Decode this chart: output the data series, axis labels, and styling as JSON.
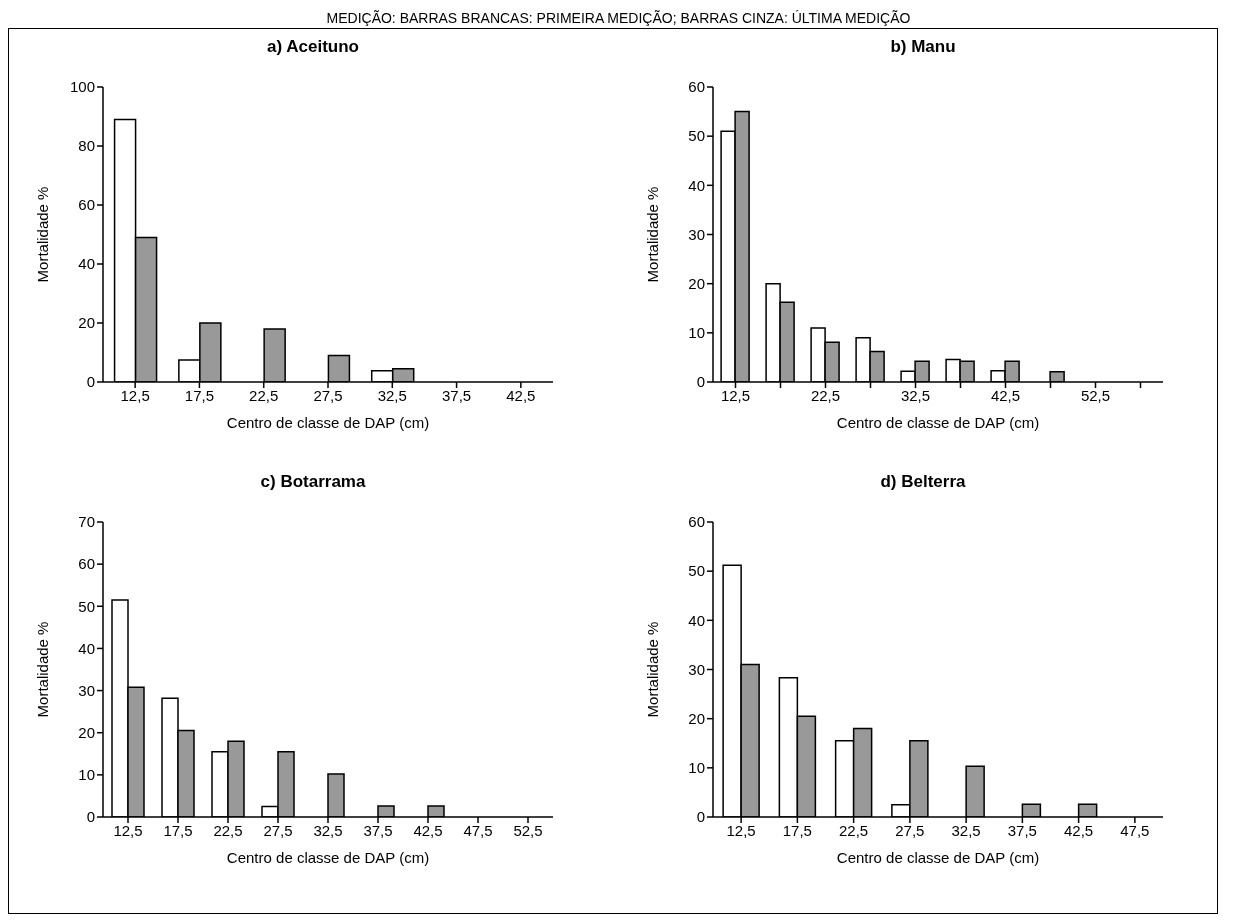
{
  "chart_data": [
    {
      "type": "bar",
      "title": "a) Aceituno",
      "annotations": [
        "MEDIÇÃO: BARRAS BRANCAS: PRIMEIRA MEDIÇÃO; BARRAS CINZA: ÚLTIMA MEDIÇÃO"
      ],
      "xlabel": "Centro de classe de DAP (cm)",
      "ylabel": "Mortalidade %",
      "categories": [
        "12,5",
        "17,5",
        "22,5",
        "27,5",
        "32,5",
        "37,5",
        "42,5"
      ],
      "series": [
        {
          "color": "#ffffff",
          "values": [
            89,
            7.5,
            0,
            0,
            3.8,
            0,
            0
          ]
        },
        {
          "color": "#999999",
          "values": [
            49,
            20,
            18,
            9,
            4.5,
            0,
            0
          ]
        }
      ],
      "ylim": [
        0,
        100
      ],
      "yticks": [
        0,
        20,
        40,
        60,
        80,
        100
      ]
    },
    {
      "type": "bar",
      "title": "b) Manu",
      "xlabel": "Centro de classe de DAP (cm)",
      "ylabel": "Mortalidade %",
      "categories": [
        "12,5",
        null,
        "22,5",
        null,
        "32,5",
        null,
        "42,5",
        null,
        "52,5",
        null
      ],
      "series": [
        {
          "color": "#ffffff",
          "values": [
            51,
            20,
            11,
            9,
            2.2,
            4.6,
            2.3,
            0,
            0,
            0
          ]
        },
        {
          "color": "#999999",
          "values": [
            55,
            16.2,
            8.1,
            6.2,
            4.2,
            4.2,
            4.2,
            2.1,
            0,
            0
          ]
        }
      ],
      "ylim": [
        0,
        60
      ],
      "yticks": [
        0,
        10,
        20,
        30,
        40,
        50,
        60
      ]
    },
    {
      "type": "bar",
      "title": "c) Botarrama",
      "xlabel": "Centro de classe de DAP (cm)",
      "ylabel": "Mortalidade %",
      "categories": [
        "12,5",
        "17,5",
        "22,5",
        "27,5",
        "32,5",
        "37,5",
        "42,5",
        "47,5",
        "52,5"
      ],
      "series": [
        {
          "color": "#ffffff",
          "values": [
            51.5,
            28.2,
            15.5,
            2.5,
            0,
            0,
            0,
            0,
            0
          ]
        },
        {
          "color": "#999999",
          "values": [
            30.8,
            20.5,
            18,
            15.5,
            10.2,
            2.6,
            2.6,
            0,
            0
          ]
        }
      ],
      "ylim": [
        0,
        70
      ],
      "yticks": [
        0,
        10,
        20,
        30,
        40,
        50,
        60,
        70
      ]
    },
    {
      "type": "bar",
      "title": "d) Belterra",
      "xlabel": "Centro de classe de DAP (cm)",
      "ylabel": "Mortalidade %",
      "categories": [
        "12,5",
        "17,5",
        "22,5",
        "27,5",
        "32,5",
        "37,5",
        "42,5",
        "47,5"
      ],
      "series": [
        {
          "color": "#ffffff",
          "values": [
            51.2,
            28.3,
            15.5,
            2.5,
            0,
            0,
            0,
            0
          ]
        },
        {
          "color": "#999999",
          "values": [
            31,
            20.5,
            18,
            15.5,
            10.3,
            2.6,
            2.6,
            0
          ]
        }
      ],
      "ylim": [
        0,
        60
      ],
      "yticks": [
        0,
        10,
        20,
        30,
        40,
        50,
        60
      ]
    }
  ]
}
